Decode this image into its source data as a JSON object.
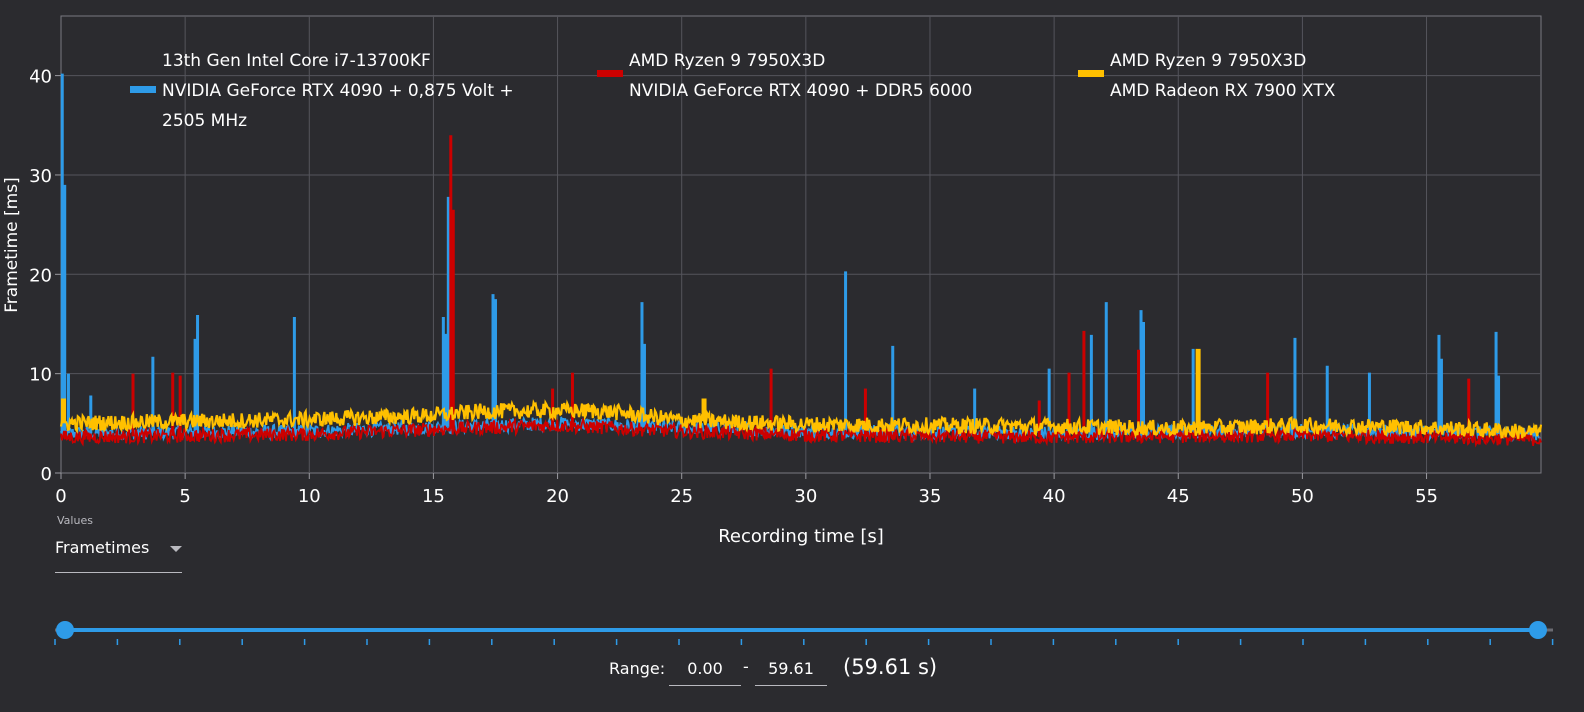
{
  "chart_data": {
    "type": "line",
    "title": "",
    "xlabel": "Recording time [s]",
    "ylabel": "Frametime [ms]",
    "xlim": [
      0,
      59.61
    ],
    "ylim": [
      0,
      46
    ],
    "x_ticks": [
      0,
      5,
      10,
      15,
      20,
      25,
      30,
      35,
      40,
      45,
      50,
      55
    ],
    "y_ticks": [
      0,
      10,
      20,
      30,
      40
    ],
    "grid": true,
    "legend_position": "top",
    "series": [
      {
        "name_lines": [
          "13th Gen Intel Core i7-13700KF",
          "NVIDIA GeForce RTX 4090 + 0,875 Volt +",
          "2505 MHz"
        ],
        "color": "#2e9be8",
        "baseline": [
          [
            0,
            4.0
          ],
          [
            10,
            4.2
          ],
          [
            15,
            4.6
          ],
          [
            20,
            5.0
          ],
          [
            25,
            4.6
          ],
          [
            30,
            4.2
          ],
          [
            40,
            4.0
          ],
          [
            50,
            4.3
          ],
          [
            59.61,
            3.9
          ]
        ],
        "spikes": [
          [
            0.05,
            40.2
          ],
          [
            0.15,
            29
          ],
          [
            0.3,
            10
          ],
          [
            1.2,
            7.8
          ],
          [
            3.7,
            11.7
          ],
          [
            5.4,
            13.5
          ],
          [
            5.5,
            15.9
          ],
          [
            9.4,
            15.7
          ],
          [
            15.4,
            15.7
          ],
          [
            15.5,
            14
          ],
          [
            15.6,
            27.8
          ],
          [
            17.4,
            18
          ],
          [
            17.5,
            17.5
          ],
          [
            23.4,
            17.2
          ],
          [
            23.5,
            13
          ],
          [
            31.6,
            20.3
          ],
          [
            33.5,
            12.8
          ],
          [
            36.8,
            8.5
          ],
          [
            39.8,
            10.5
          ],
          [
            41.5,
            13.9
          ],
          [
            42.1,
            17.2
          ],
          [
            43.5,
            16.4
          ],
          [
            43.6,
            15.2
          ],
          [
            45.6,
            12.5
          ],
          [
            49.7,
            13.6
          ],
          [
            51.0,
            10.8
          ],
          [
            52.7,
            10.1
          ],
          [
            55.5,
            13.9
          ],
          [
            55.6,
            11.5
          ],
          [
            57.8,
            14.2
          ],
          [
            57.9,
            9.8
          ]
        ]
      },
      {
        "name_lines": [
          "AMD Ryzen 9 7950X3D",
          "NVIDIA GeForce RTX 4090 + DDR5 6000"
        ],
        "color": "#cc0000",
        "baseline": [
          [
            0,
            3.6
          ],
          [
            10,
            3.9
          ],
          [
            15,
            4.4
          ],
          [
            20,
            4.8
          ],
          [
            25,
            4.2
          ],
          [
            30,
            3.8
          ],
          [
            40,
            3.6
          ],
          [
            50,
            3.8
          ],
          [
            59.61,
            3.4
          ]
        ],
        "spikes": [
          [
            2.9,
            10
          ],
          [
            4.5,
            10.1
          ],
          [
            4.8,
            9.8
          ],
          [
            15.7,
            34
          ],
          [
            15.8,
            26.5
          ],
          [
            19.8,
            8.5
          ],
          [
            20.6,
            10.1
          ],
          [
            28.6,
            10.5
          ],
          [
            32.4,
            8.5
          ],
          [
            39.4,
            7.3
          ],
          [
            40.6,
            10.1
          ],
          [
            41.2,
            14.3
          ],
          [
            43.4,
            12.4
          ],
          [
            48.6,
            10.1
          ],
          [
            56.7,
            9.5
          ]
        ]
      },
      {
        "name_lines": [
          "AMD Ryzen 9 7950X3D",
          "AMD Radeon RX 7900 XTX"
        ],
        "color": "#ffc000",
        "baseline": [
          [
            0,
            5.0
          ],
          [
            5,
            5.2
          ],
          [
            10,
            5.4
          ],
          [
            15,
            5.8
          ],
          [
            17,
            6.2
          ],
          [
            20,
            6.3
          ],
          [
            22,
            6.2
          ],
          [
            25,
            5.3
          ],
          [
            30,
            4.9
          ],
          [
            35,
            4.8
          ],
          [
            40,
            4.7
          ],
          [
            45,
            4.5
          ],
          [
            50,
            4.8
          ],
          [
            55,
            4.6
          ],
          [
            59.61,
            4.1
          ]
        ],
        "spikes": [
          [
            0.1,
            7.5
          ],
          [
            21.2,
            6.9
          ],
          [
            25.9,
            7.5
          ],
          [
            45.8,
            12.5
          ]
        ]
      }
    ]
  },
  "controls": {
    "values_caption": "Values",
    "metric_select_value": "Frametimes",
    "range_label": "Range:",
    "range_start": "0.00",
    "range_separator": "-",
    "range_end": "59.61",
    "range_duration": "(59.61 s)",
    "slider_start": 0,
    "slider_end": 59.61,
    "accent_color": "#2e9be8"
  }
}
